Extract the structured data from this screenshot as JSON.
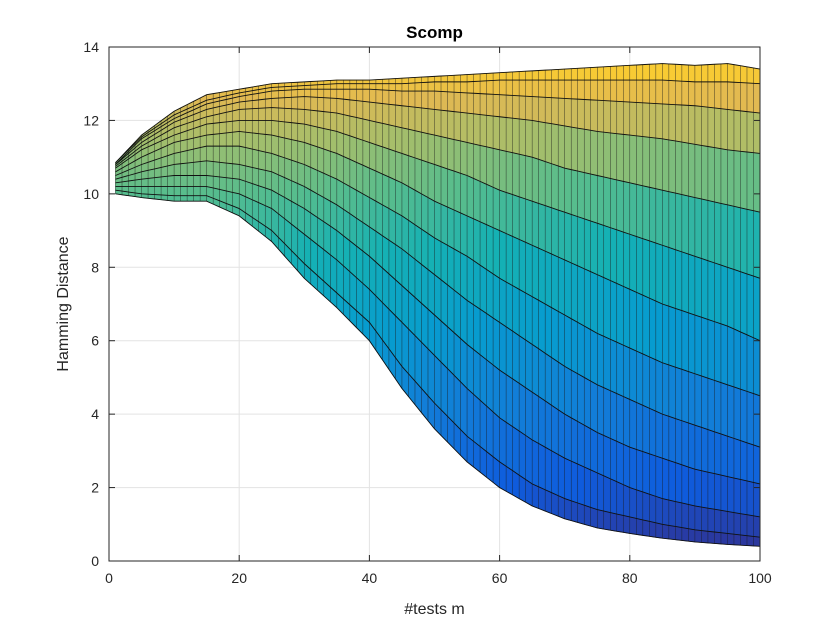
{
  "chart_data": {
    "type": "area",
    "view": "surface",
    "title": "Scomp",
    "xlabel": "#tests m",
    "ylabel": "Hamming Distance",
    "xlim": [
      0,
      100
    ],
    "ylim": [
      0,
      14
    ],
    "xticks": [
      0,
      20,
      40,
      60,
      80,
      100
    ],
    "yticks": [
      0,
      2,
      4,
      6,
      8,
      10,
      12,
      14
    ],
    "grid": true,
    "colormap": "parula",
    "x": [
      1,
      5,
      10,
      15,
      20,
      25,
      30,
      35,
      40,
      45,
      50,
      55,
      60,
      65,
      70,
      75,
      80,
      85,
      90,
      95,
      100
    ],
    "series": [
      {
        "values": [
          10.0,
          9.9,
          9.8,
          9.8,
          9.4,
          8.7,
          7.7,
          6.9,
          6.0,
          4.7,
          3.6,
          2.7,
          2.0,
          1.5,
          1.15,
          0.9,
          0.75,
          0.62,
          0.52,
          0.45,
          0.4
        ]
      },
      {
        "values": [
          10.1,
          10.0,
          9.95,
          9.95,
          9.6,
          9.0,
          8.1,
          7.3,
          6.5,
          5.3,
          4.3,
          3.4,
          2.7,
          2.1,
          1.7,
          1.4,
          1.2,
          1.0,
          0.85,
          0.75,
          0.65
        ]
      },
      {
        "values": [
          10.2,
          10.2,
          10.2,
          10.2,
          10.0,
          9.6,
          8.9,
          8.2,
          7.4,
          6.5,
          5.6,
          4.7,
          3.9,
          3.3,
          2.8,
          2.4,
          2.0,
          1.7,
          1.5,
          1.35,
          1.2
        ]
      },
      {
        "values": [
          10.3,
          10.4,
          10.5,
          10.5,
          10.4,
          10.1,
          9.6,
          9.0,
          8.3,
          7.5,
          6.7,
          5.9,
          5.2,
          4.6,
          4.0,
          3.5,
          3.1,
          2.8,
          2.5,
          2.3,
          2.1
        ]
      },
      {
        "values": [
          10.4,
          10.6,
          10.8,
          10.9,
          10.8,
          10.6,
          10.2,
          9.7,
          9.1,
          8.5,
          7.8,
          7.1,
          6.5,
          5.9,
          5.3,
          4.8,
          4.4,
          4.0,
          3.7,
          3.4,
          3.1
        ]
      },
      {
        "values": [
          10.5,
          10.8,
          11.1,
          11.3,
          11.3,
          11.1,
          10.8,
          10.4,
          9.9,
          9.4,
          8.8,
          8.3,
          7.7,
          7.2,
          6.7,
          6.2,
          5.8,
          5.4,
          5.1,
          4.8,
          4.5
        ]
      },
      {
        "values": [
          10.6,
          11.0,
          11.4,
          11.6,
          11.7,
          11.6,
          11.4,
          11.1,
          10.7,
          10.3,
          9.8,
          9.4,
          9.0,
          8.6,
          8.2,
          7.8,
          7.4,
          7.0,
          6.7,
          6.4,
          6.0
        ]
      },
      {
        "values": [
          10.7,
          11.2,
          11.6,
          11.9,
          12.0,
          12.0,
          11.9,
          11.7,
          11.4,
          11.1,
          10.8,
          10.5,
          10.1,
          9.8,
          9.5,
          9.2,
          8.9,
          8.6,
          8.3,
          8.0,
          7.7
        ]
      },
      {
        "values": [
          10.75,
          11.3,
          11.8,
          12.1,
          12.3,
          12.35,
          12.3,
          12.2,
          12.0,
          11.8,
          11.6,
          11.4,
          11.2,
          11.0,
          10.7,
          10.5,
          10.3,
          10.1,
          9.9,
          9.7,
          9.5
        ]
      },
      {
        "values": [
          10.8,
          11.4,
          11.95,
          12.3,
          12.5,
          12.6,
          12.65,
          12.6,
          12.5,
          12.4,
          12.3,
          12.2,
          12.1,
          12.0,
          11.85,
          11.7,
          11.6,
          11.5,
          11.35,
          11.2,
          11.1
        ]
      },
      {
        "values": [
          10.8,
          11.5,
          12.05,
          12.45,
          12.65,
          12.8,
          12.85,
          12.85,
          12.85,
          12.8,
          12.8,
          12.75,
          12.7,
          12.65,
          12.6,
          12.55,
          12.5,
          12.45,
          12.4,
          12.3,
          12.2
        ]
      },
      {
        "values": [
          10.85,
          11.55,
          12.15,
          12.55,
          12.75,
          12.9,
          12.95,
          13.0,
          13.0,
          13.0,
          13.05,
          13.05,
          13.1,
          13.1,
          13.1,
          13.1,
          13.1,
          13.1,
          13.05,
          13.05,
          13.0
        ]
      },
      {
        "values": [
          10.85,
          11.6,
          12.25,
          12.7,
          12.85,
          13.0,
          13.05,
          13.1,
          13.1,
          13.15,
          13.2,
          13.25,
          13.3,
          13.35,
          13.4,
          13.45,
          13.5,
          13.55,
          13.5,
          13.55,
          13.4
        ]
      }
    ]
  }
}
